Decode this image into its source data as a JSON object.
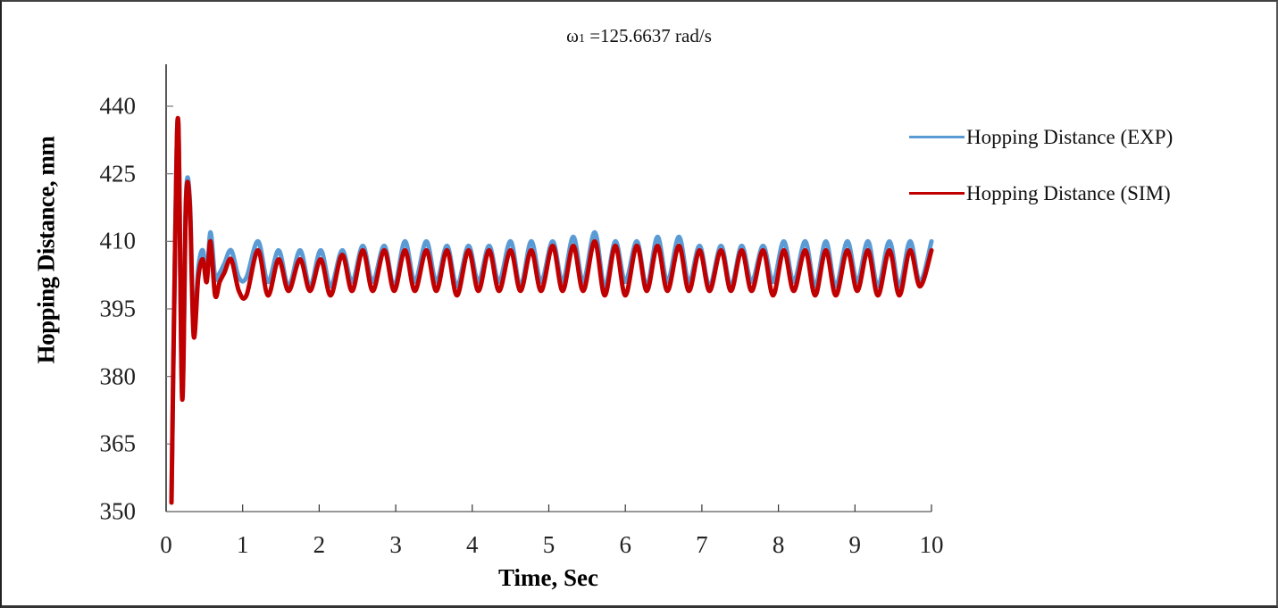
{
  "chart_data": {
    "type": "line",
    "title": "ω1 =125.6637 rad/s",
    "title_parts": {
      "symbol": "ω",
      "subscript": "1",
      "rest": " =125.6637 rad/s"
    },
    "xlabel": "Time, Sec",
    "ylabel": "Hopping Distance, mm",
    "xlim": [
      0,
      10
    ],
    "ylim": [
      350,
      450
    ],
    "x_ticks": [
      0,
      1,
      2,
      3,
      4,
      5,
      6,
      7,
      8,
      9,
      10
    ],
    "y_ticks": [
      350,
      365,
      380,
      395,
      410,
      425,
      440
    ],
    "grid": false,
    "legend_position": "right",
    "series": [
      {
        "name": "Hopping Distance (EXP)",
        "color": "#5b9bd5",
        "x": [
          0.07,
          0.12,
          0.16,
          0.21,
          0.26,
          0.31,
          0.36,
          0.42,
          0.48,
          0.53,
          0.58,
          0.64,
          0.7,
          0.76,
          0.85,
          0.95,
          1.05,
          1.2,
          1.33,
          1.47,
          1.6,
          1.75,
          1.88,
          2.02,
          2.15,
          2.3,
          2.43,
          2.57,
          2.7,
          2.85,
          2.98,
          3.12,
          3.25,
          3.4,
          3.53,
          3.67,
          3.8,
          3.95,
          4.08,
          4.22,
          4.35,
          4.5,
          4.63,
          4.77,
          4.9,
          5.05,
          5.18,
          5.32,
          5.45,
          5.6,
          5.73,
          5.87,
          6.0,
          6.15,
          6.28,
          6.42,
          6.55,
          6.7,
          6.83,
          6.97,
          7.1,
          7.25,
          7.38,
          7.52,
          7.65,
          7.8,
          7.93,
          8.07,
          8.2,
          8.35,
          8.48,
          8.62,
          8.75,
          8.9,
          9.03,
          9.17,
          9.3,
          9.45,
          9.58,
          9.72,
          9.85,
          10.0
        ],
        "y": [
          352,
          412,
          436,
          376,
          420,
          419,
          390,
          404,
          408,
          402,
          412,
          402,
          403,
          405,
          408,
          402,
          402,
          410,
          401,
          408,
          400,
          408,
          400,
          408,
          400,
          408,
          401,
          409,
          401,
          409,
          400,
          410,
          401,
          410,
          401,
          409,
          400,
          409,
          401,
          409,
          401,
          410,
          400,
          410,
          401,
          410,
          401,
          411,
          401,
          412,
          400,
          410,
          401,
          410,
          400,
          411,
          401,
          411,
          401,
          409,
          400,
          409,
          400,
          409,
          401,
          409,
          401,
          410,
          401,
          410,
          400,
          410,
          400,
          410,
          401,
          410,
          400,
          410,
          400,
          410,
          401,
          410
        ]
      },
      {
        "name": "Hopping Distance (SIM)",
        "color": "#c00000",
        "x": [
          0.07,
          0.12,
          0.16,
          0.21,
          0.26,
          0.31,
          0.36,
          0.42,
          0.48,
          0.53,
          0.58,
          0.64,
          0.7,
          0.76,
          0.85,
          0.95,
          1.05,
          1.2,
          1.33,
          1.47,
          1.6,
          1.75,
          1.88,
          2.02,
          2.15,
          2.3,
          2.43,
          2.57,
          2.7,
          2.85,
          2.98,
          3.12,
          3.25,
          3.4,
          3.53,
          3.67,
          3.8,
          3.95,
          4.08,
          4.22,
          4.35,
          4.5,
          4.63,
          4.77,
          4.9,
          5.05,
          5.18,
          5.32,
          5.45,
          5.6,
          5.73,
          5.87,
          6.0,
          6.15,
          6.28,
          6.42,
          6.55,
          6.7,
          6.83,
          6.97,
          7.1,
          7.25,
          7.38,
          7.52,
          7.65,
          7.8,
          7.93,
          8.07,
          8.2,
          8.35,
          8.48,
          8.62,
          8.75,
          8.9,
          9.03,
          9.17,
          9.3,
          9.45,
          9.58,
          9.72,
          9.85,
          10.0
        ],
        "y": [
          352,
          412,
          436,
          375,
          419,
          418,
          389,
          402,
          406,
          401,
          410,
          398,
          401,
          403,
          406,
          399,
          398,
          408,
          398,
          406,
          399,
          406,
          399,
          406,
          398,
          407,
          399,
          408,
          399,
          408,
          399,
          408,
          399,
          408,
          399,
          408,
          398,
          408,
          399,
          408,
          399,
          408,
          399,
          408,
          399,
          409,
          399,
          409,
          399,
          410,
          398,
          409,
          398,
          409,
          399,
          409,
          399,
          409,
          399,
          408,
          399,
          408,
          399,
          408,
          399,
          408,
          398,
          408,
          399,
          408,
          398,
          408,
          398,
          408,
          399,
          408,
          398,
          408,
          398,
          408,
          400,
          408
        ]
      }
    ]
  },
  "legend": {
    "items": [
      {
        "label": "Hopping Distance (EXP)",
        "color": "#5b9bd5"
      },
      {
        "label": "Hopping Distance (SIM)",
        "color": "#c00000"
      }
    ]
  }
}
